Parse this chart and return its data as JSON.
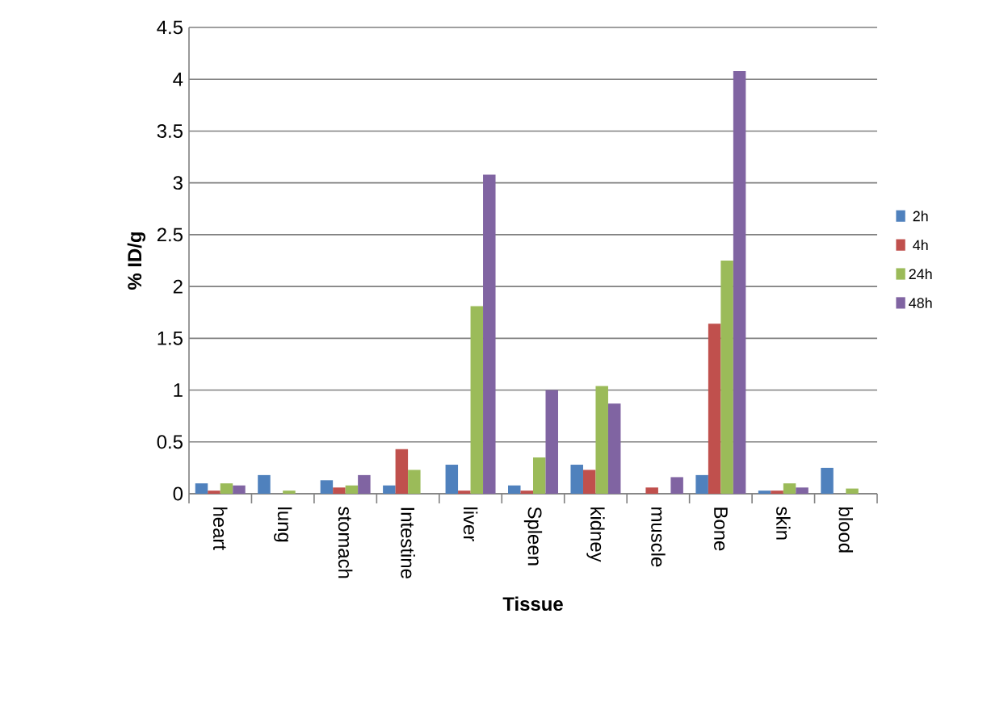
{
  "chart_data": {
    "type": "bar",
    "xlabel": "Tissue",
    "ylabel": "% ID/g",
    "categories": [
      "heart",
      "lung",
      "stomach",
      "Intestine",
      "liver",
      "Spleen",
      "kidney",
      "muscle",
      "Bone",
      "skin",
      "blood"
    ],
    "series": [
      {
        "name": "2h",
        "color": "#4f81bd",
        "values": [
          0.1,
          0.18,
          0.13,
          0.08,
          0.28,
          0.08,
          0.28,
          0,
          0.18,
          0.03,
          0.25
        ]
      },
      {
        "name": "4h",
        "color": "#c0504d",
        "values": [
          0.03,
          0,
          0.06,
          0.43,
          0.03,
          0.03,
          0.23,
          0.06,
          1.64,
          0.03,
          0
        ]
      },
      {
        "name": "24h",
        "color": "#9bbb59",
        "values": [
          0.1,
          0.03,
          0.08,
          0.23,
          1.81,
          0.35,
          1.04,
          0,
          2.25,
          0.1,
          0.05
        ]
      },
      {
        "name": "48h",
        "color": "#8064a2",
        "values": [
          0.08,
          0,
          0.18,
          0,
          3.08,
          1.0,
          0.87,
          0.16,
          4.08,
          0.06,
          0
        ]
      }
    ],
    "ylim": [
      0,
      4.5
    ],
    "yticks": [
      0,
      0.5,
      1,
      1.5,
      2,
      2.5,
      3,
      3.5,
      4,
      4.5
    ],
    "grid": "y",
    "legend": "right"
  }
}
